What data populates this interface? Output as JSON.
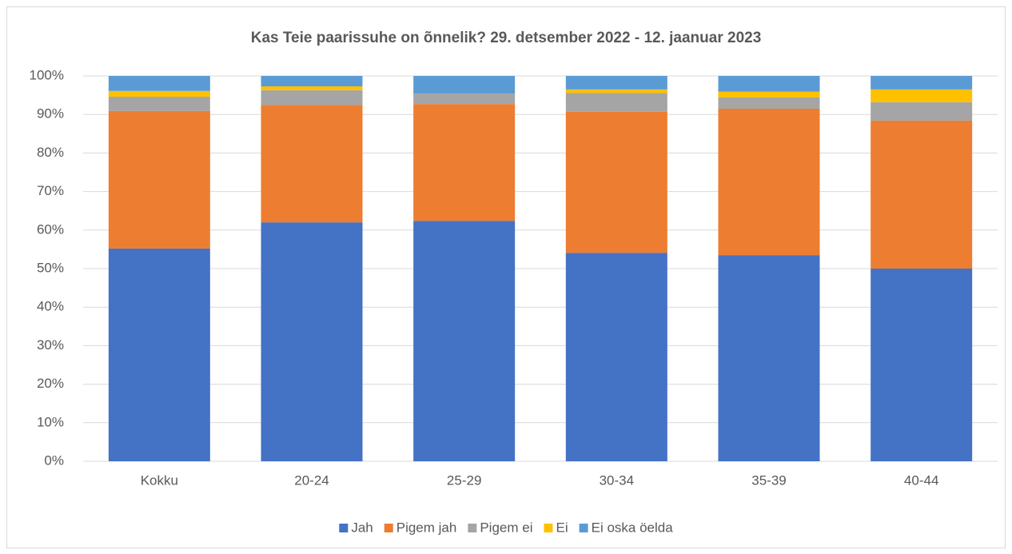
{
  "chart_data": {
    "type": "stacked_bar",
    "title": "Kas Teie paarissuhe on õnnelik? 29. detsember 2022 - 12. jaanuar 2023",
    "categories": [
      "Kokku",
      "20-24",
      "25-29",
      "30-34",
      "35-39",
      "40-44"
    ],
    "series": [
      {
        "name": "Jah",
        "color": "#4472c4",
        "values": [
          55.2,
          62.0,
          62.4,
          54.1,
          53.5,
          50.0
        ]
      },
      {
        "name": "Pigem jah",
        "color": "#ed7d31",
        "values": [
          35.7,
          30.5,
          30.3,
          36.6,
          38.0,
          38.4
        ]
      },
      {
        "name": "Pigem ei",
        "color": "#a5a5a5",
        "values": [
          3.7,
          3.8,
          2.7,
          4.9,
          2.9,
          4.8
        ]
      },
      {
        "name": "Ei",
        "color": "#ffc000",
        "values": [
          1.5,
          1.0,
          0,
          0.9,
          1.5,
          3.3
        ]
      },
      {
        "name": "Ei oska öelda",
        "color": "#5b9bd5",
        "values": [
          3.9,
          2.7,
          4.6,
          3.5,
          4.1,
          3.5
        ]
      }
    ],
    "ylim": [
      0,
      100
    ],
    "yticks": [
      {
        "value": 0,
        "label": "0%"
      },
      {
        "value": 10,
        "label": "10%"
      },
      {
        "value": 20,
        "label": "20%"
      },
      {
        "value": 30,
        "label": "30%"
      },
      {
        "value": 40,
        "label": "40%"
      },
      {
        "value": 50,
        "label": "50%"
      },
      {
        "value": 60,
        "label": "60%"
      },
      {
        "value": 70,
        "label": "70%"
      },
      {
        "value": 80,
        "label": "80%"
      },
      {
        "value": 90,
        "label": "90%"
      },
      {
        "value": 100,
        "label": "100%"
      }
    ],
    "grid": true,
    "legend": "bottom"
  }
}
